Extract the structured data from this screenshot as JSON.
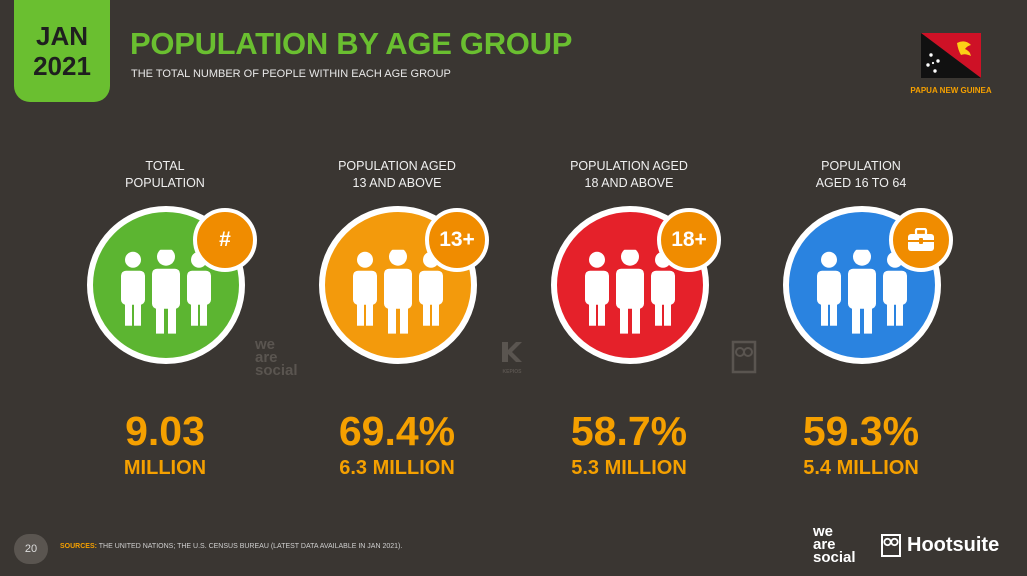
{
  "header": {
    "month": "JAN",
    "year": "2021",
    "title": "POPULATION BY AGE GROUP",
    "subtitle": "THE TOTAL NUMBER OF PEOPLE WITHIN EACH AGE GROUP",
    "country": "PAPUA NEW GUINEA"
  },
  "stats": [
    {
      "label": "TOTAL\nPOPULATION",
      "value": "9.03",
      "sub": "MILLION",
      "badge": "#",
      "color": "#5cb531"
    },
    {
      "label": "POPULATION AGED\n13 AND ABOVE",
      "value": "69.4%",
      "sub": "6.3 MILLION",
      "badge": "13+",
      "color": "#f39a0c"
    },
    {
      "label": "POPULATION AGED\n18 AND ABOVE",
      "value": "58.7%",
      "sub": "5.3 MILLION",
      "badge": "18+",
      "color": "#e5212a"
    },
    {
      "label": "POPULATION\nAGED 16 TO 64",
      "value": "59.3%",
      "sub": "5.4 MILLION",
      "badge": "briefcase-icon",
      "color": "#2a83e0"
    }
  ],
  "watermarks": {
    "we_are_social": [
      "we",
      "are",
      "social"
    ],
    "kepios": "KEPIOS"
  },
  "footer": {
    "page": "20",
    "sources_label": "SOURCES:",
    "sources_text": "THE UNITED NATIONS; THE U.S. CENSUS BUREAU (LATEST DATA AVAILABLE IN JAN 2021).",
    "logo_was": [
      "we",
      "are",
      "social"
    ],
    "logo_hootsuite": "Hootsuite"
  },
  "colors": {
    "background": "#3a3632",
    "green": "#6abf30",
    "orange": "#f5a000",
    "badge": "#f08c00"
  }
}
